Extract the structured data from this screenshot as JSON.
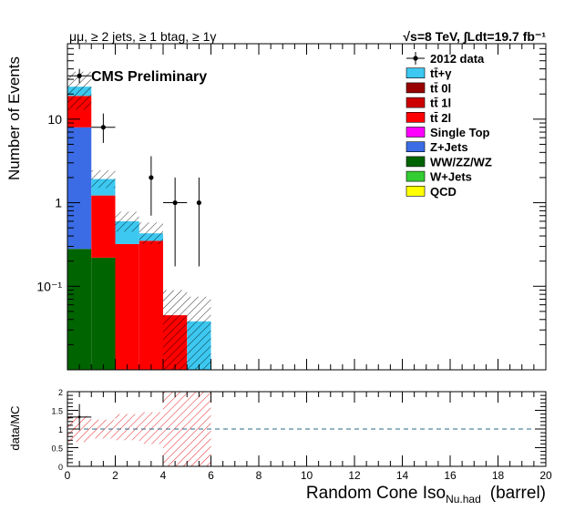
{
  "chart_data": [
    {
      "type": "bar",
      "panel": "main",
      "stacked": true,
      "header_left": "μμ, ≥ 2 jets, ≥ 1 btag, ≥ 1γ",
      "header_right": "√s=8 TeV, ∫Ldt=19.7 fb⁻¹",
      "watermark": "CMS Preliminary",
      "ylabel": "Number of Events",
      "y_scale": "log",
      "ylim": [
        0.01,
        80
      ],
      "y_ticks": [
        {
          "v": 0.1,
          "label": "10⁻¹"
        },
        {
          "v": 1,
          "label": "1"
        },
        {
          "v": 10,
          "label": "10"
        }
      ],
      "xlim": [
        0,
        20
      ],
      "bin_edges": [
        0,
        1,
        2,
        3,
        4,
        5,
        6
      ],
      "series": [
        {
          "name": "WW/ZZ/WZ",
          "color": "#006400",
          "values": [
            0.28,
            0.22,
            0,
            0,
            0,
            0
          ]
        },
        {
          "name": "Z+Jets",
          "color": "#3B6CE6",
          "values": [
            7.7,
            0,
            0,
            0,
            0,
            0
          ]
        },
        {
          "name": "tt̄ 2l",
          "color": "#FF0000",
          "values": [
            11,
            1.0,
            0.32,
            0.35,
            0.045,
            0
          ]
        },
        {
          "name": "tt̄+γ",
          "color": "#3CC8F0",
          "values": [
            5.5,
            0.7,
            0.28,
            0.08,
            0,
            0.038
          ]
        }
      ],
      "uncertainty_band": [
        {
          "lo": 13,
          "hi": 37
        },
        {
          "lo": 1.5,
          "hi": 2.45
        },
        {
          "lo": 0.45,
          "hi": 0.78
        },
        {
          "lo": 0.32,
          "hi": 0.58
        },
        {
          "lo": 0.01,
          "hi": 0.09
        },
        {
          "lo": 0.01,
          "hi": 0.075
        }
      ],
      "data_points": [
        {
          "x": 0.5,
          "y": 33,
          "err_lo": 6,
          "err_hi": 7,
          "xerr": 0.5
        },
        {
          "x": 1.5,
          "y": 8,
          "err_lo": 2.8,
          "err_hi": 3.7,
          "xerr": 0.5
        },
        {
          "x": 3.5,
          "y": 2,
          "err_lo": 1.3,
          "err_hi": 1.6,
          "xerr": 0
        },
        {
          "x": 4.5,
          "y": 1,
          "err_lo": 0.827,
          "err_hi": 1.0,
          "xerr": 0.5
        },
        {
          "x": 5.5,
          "y": 1,
          "err_lo": 0.827,
          "err_hi": 1.0,
          "xerr": 0
        }
      ],
      "legend_placement": "top-right",
      "legend": [
        {
          "name": "2012 data",
          "style": "marker",
          "color": "#000000"
        },
        {
          "name": "tt̄+γ",
          "style": "fill",
          "color": "#3CC8F0"
        },
        {
          "name": "tt̄ 0l",
          "style": "fill",
          "color": "#990000"
        },
        {
          "name": "tt̄ 1l",
          "style": "fill",
          "color": "#CC0000"
        },
        {
          "name": "tt̄ 2l",
          "style": "fill",
          "color": "#FF0000"
        },
        {
          "name": "Single Top",
          "style": "fill",
          "color": "#FF00FF"
        },
        {
          "name": "Z+Jets",
          "style": "fill",
          "color": "#3B6CE6"
        },
        {
          "name": "WW/ZZ/WZ",
          "style": "fill",
          "color": "#006400"
        },
        {
          "name": "W+Jets",
          "style": "fill",
          "color": "#33CC33"
        },
        {
          "name": "QCD",
          "style": "fill",
          "color": "#FFFF00"
        }
      ]
    },
    {
      "type": "scatter",
      "panel": "ratio",
      "ylabel": "data/MC",
      "xlabel": "Random Cone Iso",
      "xlabel_sub": "Nu.had",
      "xlabel_suffix": "(barrel)",
      "ylim": [
        0,
        2
      ],
      "y_ticks": [
        0,
        0.5,
        1,
        1.5,
        2
      ],
      "y_tick_labels": [
        "0",
        "0.5",
        "1",
        "1.5",
        "2"
      ],
      "xlim": [
        0,
        20
      ],
      "x_ticks": [
        0,
        2,
        4,
        6,
        8,
        10,
        12,
        14,
        16,
        18,
        20
      ],
      "x_tick_labels": [
        "0",
        "2",
        "4",
        "6",
        "8",
        "10",
        "12",
        "14",
        "16",
        "18",
        "20"
      ],
      "reference_line": 1,
      "band": [
        {
          "x0": 0,
          "x1": 1,
          "lo": 0.65,
          "hi": 1.35
        },
        {
          "x0": 1,
          "x1": 2,
          "lo": 0.75,
          "hi": 1.25
        },
        {
          "x0": 2,
          "x1": 3,
          "lo": 0.7,
          "hi": 1.4
        },
        {
          "x0": 3,
          "x1": 4,
          "lo": 0.6,
          "hi": 1.45
        },
        {
          "x0": 4,
          "x1": 5,
          "lo": 0,
          "hi": 2
        },
        {
          "x0": 5,
          "x1": 6,
          "lo": 0,
          "hi": 2
        }
      ],
      "points": [
        {
          "x": 0.5,
          "y": 1.32,
          "err": 0.35,
          "xerr": 0.5
        }
      ]
    }
  ]
}
